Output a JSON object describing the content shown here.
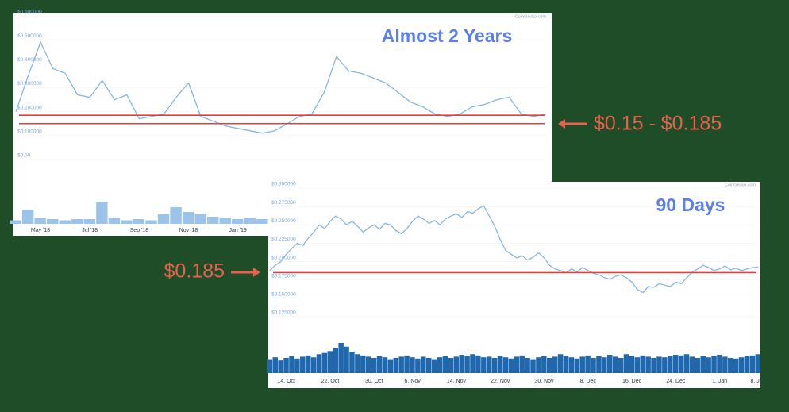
{
  "chart_data": [
    {
      "type": "line",
      "title": "Almost 2 Years",
      "source": "CoinGecko.com",
      "categories": [
        null,
        null,
        "May '18",
        null,
        null,
        null,
        "Jul '18",
        null,
        null,
        null,
        "Sep '18",
        null,
        null,
        null,
        "Nov '18",
        null,
        null,
        null,
        "Jan '19",
        null,
        null,
        null,
        null,
        null,
        null,
        null,
        null,
        null,
        null,
        null,
        null,
        null,
        null,
        null,
        null,
        null,
        null,
        null,
        null,
        null,
        null,
        null,
        null,
        null
      ],
      "values": [
        0.2,
        0.35,
        0.49,
        0.38,
        0.36,
        0.27,
        0.26,
        0.33,
        0.25,
        0.27,
        0.17,
        0.18,
        0.19,
        0.26,
        0.32,
        0.18,
        0.16,
        0.14,
        0.13,
        0.12,
        0.11,
        0.12,
        0.15,
        0.18,
        0.19,
        0.28,
        0.43,
        0.37,
        0.36,
        0.34,
        0.32,
        0.28,
        0.24,
        0.22,
        0.19,
        0.18,
        0.19,
        0.22,
        0.23,
        0.25,
        0.26,
        0.19,
        0.18,
        0.19
      ],
      "volume": [
        3,
        12,
        5,
        4,
        3,
        4,
        4,
        18,
        5,
        3,
        4,
        3,
        8,
        14,
        10,
        8,
        6,
        5,
        4,
        5,
        4,
        5,
        6,
        5,
        4,
        5,
        6,
        5,
        4,
        4,
        3,
        4,
        5,
        3,
        4,
        3,
        4,
        4,
        3,
        4,
        3,
        4,
        3,
        4
      ],
      "color": "#86b6e6",
      "volume_color": "#9cc4ea",
      "ylim": [
        0,
        0.6
      ],
      "yticks": [
        {
          "value": 0,
          "label": "$0.00"
        },
        {
          "value": 0.1,
          "label": "$0.100000"
        },
        {
          "value": 0.2,
          "label": "$0.200000"
        },
        {
          "value": 0.3,
          "label": "$0.300000"
        },
        {
          "value": 0.4,
          "label": "$0.400000"
        },
        {
          "value": 0.5,
          "label": "$0.500000"
        },
        {
          "value": 0.6,
          "label": "$0.600000"
        }
      ],
      "hlines": [
        0.185,
        0.15
      ],
      "hline_color": "#e0413a",
      "annotation": "$0.15 - $0.185"
    },
    {
      "type": "line",
      "title": "90 Days",
      "source": "CoinGecko.com",
      "categories": [
        null,
        null,
        null,
        "14. Oct",
        null,
        null,
        null,
        null,
        null,
        null,
        null,
        "22. Oct",
        null,
        null,
        null,
        null,
        null,
        null,
        null,
        "30. Oct",
        null,
        null,
        null,
        null,
        null,
        null,
        "6. Nov",
        null,
        null,
        null,
        null,
        null,
        null,
        null,
        "14. Nov",
        null,
        null,
        null,
        null,
        null,
        null,
        null,
        "22. Nov",
        null,
        null,
        null,
        null,
        null,
        null,
        null,
        "30. Nov",
        null,
        null,
        null,
        null,
        null,
        null,
        null,
        "8. Dec",
        null,
        null,
        null,
        null,
        null,
        null,
        null,
        "16. Dec",
        null,
        null,
        null,
        null,
        null,
        null,
        null,
        "24. Dec",
        null,
        null,
        null,
        null,
        null,
        null,
        null,
        "1. Jan",
        null,
        null,
        null,
        null,
        null,
        null,
        "8. Jan"
      ],
      "values": [
        0.188,
        0.195,
        0.2,
        0.21,
        0.218,
        0.225,
        0.222,
        0.232,
        0.24,
        0.25,
        0.245,
        0.255,
        0.262,
        0.258,
        0.25,
        0.255,
        0.248,
        0.24,
        0.246,
        0.25,
        0.244,
        0.252,
        0.25,
        0.242,
        0.238,
        0.245,
        0.255,
        0.262,
        0.258,
        0.252,
        0.256,
        0.25,
        0.258,
        0.262,
        0.265,
        0.26,
        0.268,
        0.266,
        0.272,
        0.276,
        0.262,
        0.248,
        0.23,
        0.215,
        0.21,
        0.205,
        0.208,
        0.202,
        0.206,
        0.212,
        0.205,
        0.195,
        0.19,
        0.188,
        0.185,
        0.19,
        0.186,
        0.192,
        0.188,
        0.184,
        0.182,
        0.178,
        0.176,
        0.18,
        0.182,
        0.178,
        0.172,
        0.162,
        0.158,
        0.166,
        0.165,
        0.17,
        0.168,
        0.166,
        0.172,
        0.17,
        0.178,
        0.186,
        0.19,
        0.195,
        0.192,
        0.188,
        0.19,
        0.194,
        0.189,
        0.191,
        0.188,
        0.19,
        0.192,
        0.193
      ],
      "volume": [
        22,
        25,
        20,
        24,
        27,
        23,
        26,
        28,
        25,
        30,
        32,
        35,
        40,
        48,
        42,
        34,
        30,
        28,
        26,
        24,
        27,
        25,
        22,
        24,
        26,
        28,
        25,
        23,
        26,
        24,
        22,
        25,
        27,
        24,
        26,
        29,
        27,
        30,
        28,
        25,
        26,
        24,
        27,
        25,
        23,
        26,
        28,
        24,
        22,
        25,
        27,
        24,
        26,
        30,
        27,
        25,
        23,
        26,
        28,
        24,
        27,
        25,
        29,
        26,
        24,
        30,
        27,
        25,
        28,
        26,
        24,
        26,
        25,
        27,
        29,
        28,
        30,
        26,
        24,
        27,
        25,
        27,
        29,
        26,
        24,
        23,
        25,
        27,
        28,
        30
      ],
      "color": "#86b6e6",
      "volume_color": "#1f68ad",
      "ylim": [
        0.125,
        0.3
      ],
      "yticks": [
        {
          "value": 0.125,
          "label": "$0.125000"
        },
        {
          "value": 0.15,
          "label": "$0.150000"
        },
        {
          "value": 0.175,
          "label": "$0.175000"
        },
        {
          "value": 0.2,
          "label": "$0.200000"
        },
        {
          "value": 0.225,
          "label": "$0.225000"
        },
        {
          "value": 0.25,
          "label": "$0.250000"
        },
        {
          "value": 0.275,
          "label": "$0.275000"
        },
        {
          "value": 0.3,
          "label": "$0.300000"
        }
      ],
      "hlines": [
        0.185
      ],
      "hline_color": "#e0413a",
      "annotation": "$0.185"
    }
  ]
}
